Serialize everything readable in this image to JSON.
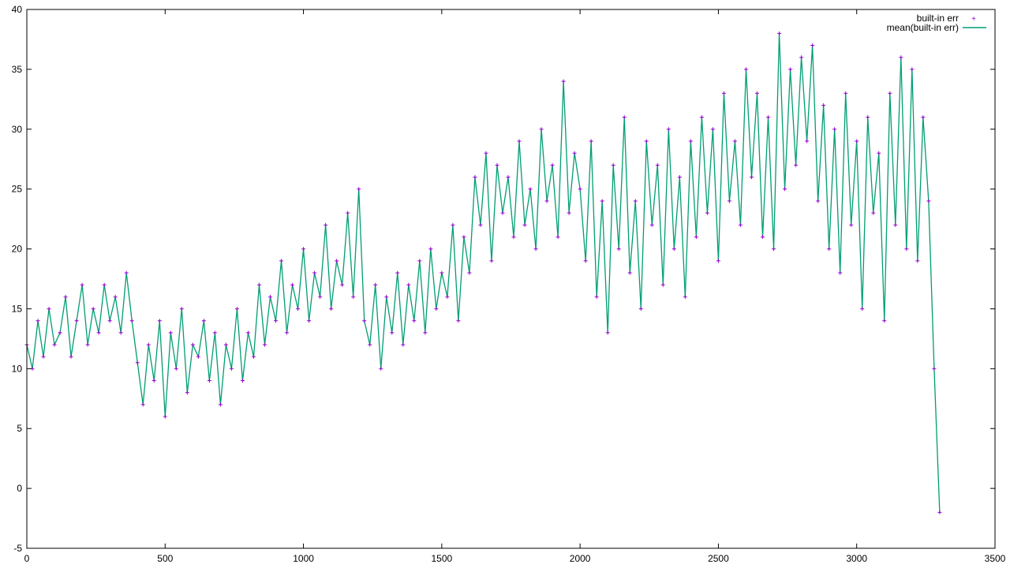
{
  "chart_data": {
    "type": "line",
    "title": "",
    "xlabel": "",
    "ylabel": "",
    "xlim": [
      0,
      3500
    ],
    "ylim": [
      -5,
      40
    ],
    "x_ticks": [
      0,
      500,
      1000,
      1500,
      2000,
      2500,
      3000,
      3500
    ],
    "y_ticks": [
      -5,
      0,
      5,
      10,
      15,
      20,
      25,
      30,
      35,
      40
    ],
    "grid": false,
    "legend_position": "top-right",
    "colors": {
      "points": "#9400d3",
      "line": "#009e73",
      "axes": "#000000"
    },
    "series": [
      {
        "name": "built-in err",
        "style": "points",
        "marker": "plus"
      },
      {
        "name": "mean(built-in err)",
        "style": "lines"
      }
    ],
    "x": [
      0,
      20,
      40,
      60,
      80,
      100,
      120,
      140,
      160,
      180,
      200,
      220,
      240,
      260,
      280,
      300,
      320,
      340,
      360,
      380,
      400,
      420,
      440,
      460,
      480,
      500,
      520,
      540,
      560,
      580,
      600,
      620,
      640,
      660,
      680,
      700,
      720,
      740,
      760,
      780,
      800,
      820,
      840,
      860,
      880,
      900,
      920,
      940,
      960,
      980,
      1000,
      1020,
      1040,
      1060,
      1080,
      1100,
      1120,
      1140,
      1160,
      1180,
      1200,
      1220,
      1240,
      1260,
      1280,
      1300,
      1320,
      1340,
      1360,
      1380,
      1400,
      1420,
      1440,
      1460,
      1480,
      1500,
      1520,
      1540,
      1560,
      1580,
      1600,
      1620,
      1640,
      1660,
      1680,
      1700,
      1720,
      1740,
      1760,
      1780,
      1800,
      1820,
      1840,
      1860,
      1880,
      1900,
      1920,
      1940,
      1960,
      1980,
      2000,
      2020,
      2040,
      2060,
      2080,
      2100,
      2120,
      2140,
      2160,
      2180,
      2200,
      2220,
      2240,
      2260,
      2280,
      2300,
      2320,
      2340,
      2360,
      2380,
      2400,
      2420,
      2440,
      2460,
      2480,
      2500,
      2520,
      2540,
      2560,
      2580,
      2600,
      2620,
      2640,
      2660,
      2680,
      2700,
      2720,
      2740,
      2760,
      2780,
      2800,
      2820,
      2840,
      2860,
      2880,
      2900,
      2920,
      2940,
      2960,
      2980,
      3000,
      3020,
      3040,
      3060,
      3080,
      3100,
      3120,
      3140,
      3160,
      3180,
      3200,
      3220,
      3240,
      3260,
      3280,
      3300
    ],
    "values": [
      12,
      10,
      14,
      11,
      15,
      12,
      13,
      16,
      11,
      14,
      17,
      12,
      15,
      13,
      17,
      14,
      16,
      13,
      18,
      14,
      10.5,
      7,
      12,
      9,
      14,
      6,
      13,
      10,
      15,
      8,
      12,
      11,
      14,
      9,
      13,
      7,
      12,
      10,
      15,
      9,
      13,
      11,
      17,
      12,
      16,
      14,
      19,
      13,
      17,
      15,
      20,
      14,
      18,
      16,
      22,
      15,
      19,
      17,
      23,
      16,
      25,
      14,
      12,
      17,
      10,
      16,
      13,
      18,
      12,
      17,
      14,
      19,
      13,
      20,
      15,
      18,
      16,
      22,
      14,
      21,
      18,
      26,
      22,
      28,
      19,
      27,
      23,
      26,
      21,
      29,
      22,
      25,
      20,
      30,
      24,
      27,
      21,
      34,
      23,
      28,
      25,
      19,
      29,
      16,
      24,
      13,
      27,
      20,
      31,
      18,
      24,
      15,
      29,
      22,
      27,
      17,
      30,
      20,
      26,
      16,
      29,
      21,
      31,
      23,
      30,
      19,
      33,
      24,
      29,
      22,
      35,
      26,
      33,
      21,
      31,
      20,
      38,
      25,
      35,
      27,
      36,
      29,
      37,
      24,
      32,
      20,
      30,
      18,
      33,
      22,
      29,
      15,
      31,
      23,
      28,
      14,
      33,
      22,
      36,
      20,
      35,
      19,
      31,
      24,
      10,
      -2
    ]
  }
}
